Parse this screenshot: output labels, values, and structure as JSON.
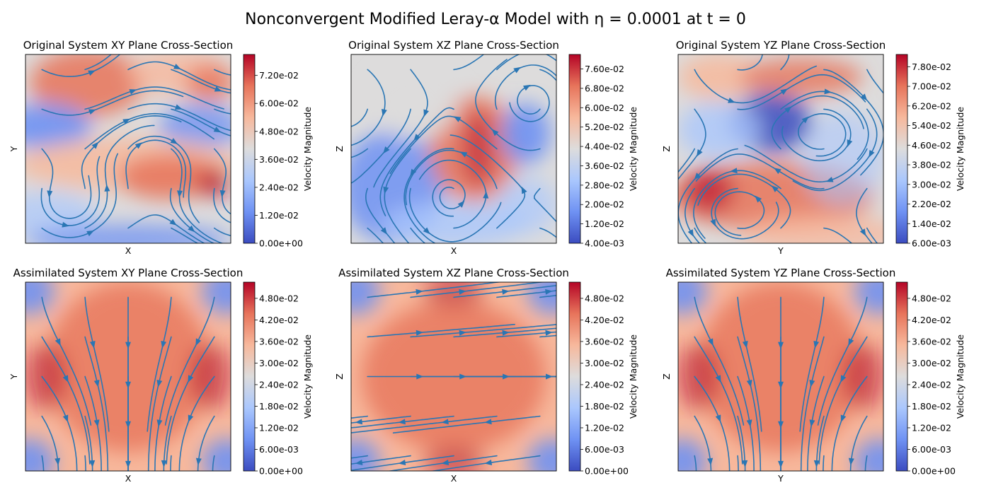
{
  "title": "Nonconvergent Modified Leray-α Model with η = 0.0001 at t = 0",
  "colormap": [
    "#3b4cc0",
    "#6f92f3",
    "#aac7fd",
    "#dddcdc",
    "#f7b89c",
    "#e7745b",
    "#b40426"
  ],
  "stream_color": "#2a76b4",
  "chart_data": [
    {
      "type": "heatmap",
      "subtitle": "Original System XY Plane Cross-Section",
      "xlabel": "X",
      "ylabel": "Y",
      "colorbar_label": "Velocity Magnitude",
      "colorbar_range": [
        0.0,
        0.081
      ],
      "colorbar_ticks": [
        "0.00e+00",
        "1.20e-02",
        "2.40e-02",
        "3.60e-02",
        "4.80e-02",
        "6.00e-02",
        "7.20e-02"
      ],
      "colorbar_tick_values": [
        0.0,
        0.012,
        0.024,
        0.036,
        0.048,
        0.06,
        0.072
      ]
    },
    {
      "type": "heatmap",
      "subtitle": "Original System XZ Plane Cross-Section",
      "xlabel": "X",
      "ylabel": "Z",
      "colorbar_label": "Velocity Magnitude",
      "colorbar_range": [
        0.004,
        0.082
      ],
      "colorbar_ticks": [
        "4.00e-03",
        "1.20e-02",
        "2.00e-02",
        "2.80e-02",
        "3.60e-02",
        "4.40e-02",
        "5.20e-02",
        "6.00e-02",
        "6.80e-02",
        "7.60e-02"
      ],
      "colorbar_tick_values": [
        0.004,
        0.012,
        0.02,
        0.028,
        0.036,
        0.044,
        0.052,
        0.06,
        0.068,
        0.076
      ]
    },
    {
      "type": "heatmap",
      "subtitle": "Original System YZ Plane Cross-Section",
      "xlabel": "Y",
      "ylabel": "Z",
      "colorbar_label": "Velocity Magnitude",
      "colorbar_range": [
        0.006,
        0.083
      ],
      "colorbar_ticks": [
        "6.00e-03",
        "1.40e-02",
        "2.20e-02",
        "3.00e-02",
        "3.80e-02",
        "4.60e-02",
        "5.40e-02",
        "6.20e-02",
        "7.00e-02",
        "7.80e-02"
      ],
      "colorbar_tick_values": [
        0.006,
        0.014,
        0.022,
        0.03,
        0.038,
        0.046,
        0.054,
        0.062,
        0.07,
        0.078
      ]
    },
    {
      "type": "heatmap",
      "subtitle": "Assimilated System XY Plane Cross-Section",
      "xlabel": "X",
      "ylabel": "Y",
      "colorbar_label": "Velocity Magnitude",
      "colorbar_range": [
        0.0,
        0.0525
      ],
      "colorbar_ticks": [
        "0.00e+00",
        "6.00e-03",
        "1.20e-02",
        "1.80e-02",
        "2.40e-02",
        "3.00e-02",
        "3.60e-02",
        "4.20e-02",
        "4.80e-02"
      ],
      "colorbar_tick_values": [
        0.0,
        0.006,
        0.012,
        0.018,
        0.024,
        0.03,
        0.036,
        0.042,
        0.048
      ]
    },
    {
      "type": "heatmap",
      "subtitle": "Assimilated System XZ Plane Cross-Section",
      "xlabel": "X",
      "ylabel": "Z",
      "colorbar_label": "Velocity Magnitude",
      "colorbar_range": [
        0.0,
        0.0525
      ],
      "colorbar_ticks": [
        "0.00e+00",
        "6.00e-03",
        "1.20e-02",
        "1.80e-02",
        "2.40e-02",
        "3.00e-02",
        "3.60e-02",
        "4.20e-02",
        "4.80e-02"
      ],
      "colorbar_tick_values": [
        0.0,
        0.006,
        0.012,
        0.018,
        0.024,
        0.03,
        0.036,
        0.042,
        0.048
      ]
    },
    {
      "type": "heatmap",
      "subtitle": "Assimilated System YZ Plane Cross-Section",
      "xlabel": "Y",
      "ylabel": "Z",
      "colorbar_label": "Velocity Magnitude",
      "colorbar_range": [
        0.0,
        0.0525
      ],
      "colorbar_ticks": [
        "0.00e+00",
        "6.00e-03",
        "1.20e-02",
        "1.80e-02",
        "2.40e-02",
        "3.00e-02",
        "3.60e-02",
        "4.20e-02",
        "4.80e-02"
      ],
      "colorbar_tick_values": [
        0.0,
        0.006,
        0.012,
        0.018,
        0.024,
        0.03,
        0.036,
        0.042,
        0.048
      ]
    }
  ]
}
